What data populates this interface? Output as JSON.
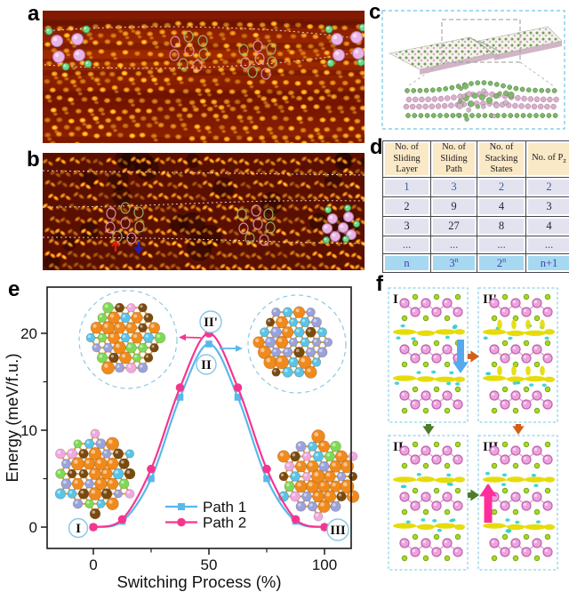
{
  "panels": {
    "a": {
      "label": "a"
    },
    "b": {
      "label": "b"
    },
    "c": {
      "label": "c"
    },
    "d": {
      "label": "d"
    },
    "e": {
      "label": "e"
    },
    "f": {
      "label": "f"
    }
  },
  "panel_d": {
    "headers": [
      {
        "text": "No. of Sliding Layer"
      },
      {
        "text": "No. of Sliding Path"
      },
      {
        "text": "No. of Stacking States"
      },
      {
        "text": "No. of P",
        "sub": "z"
      }
    ],
    "rows": [
      [
        {
          "text": "1"
        },
        {
          "text": "3"
        },
        {
          "text": "2"
        },
        {
          "text": "2"
        }
      ],
      [
        {
          "text": "2"
        },
        {
          "text": "9"
        },
        {
          "text": "4"
        },
        {
          "text": "3"
        }
      ],
      [
        {
          "text": "3"
        },
        {
          "text": "27"
        },
        {
          "text": "8"
        },
        {
          "text": "4"
        }
      ],
      [
        {
          "text": "..."
        },
        {
          "text": "..."
        },
        {
          "text": "..."
        },
        {
          "text": "..."
        }
      ],
      [
        {
          "text": "n"
        },
        {
          "text": "3",
          "sup": "n"
        },
        {
          "text": "2",
          "sup": "n"
        },
        {
          "text": "n+1"
        }
      ]
    ],
    "colors": {
      "header_bg": "#FAE9C6",
      "row_bg": "#E3E3F0",
      "last_bg": "#A6D9F1"
    }
  },
  "chart_data": {
    "type": "line",
    "x": [
      0,
      12.5,
      25,
      37.5,
      50,
      62.5,
      75,
      87.5,
      100
    ],
    "series": [
      {
        "name": "Path 1",
        "color": "#58B8EC",
        "marker": "square",
        "values": [
          0,
          0.6,
          5.0,
          13.4,
          18.9,
          13.4,
          5.0,
          0.6,
          0
        ]
      },
      {
        "name": "Path 2",
        "color": "#F5368F",
        "marker": "circle",
        "values": [
          0,
          0.8,
          6.0,
          14.4,
          20.0,
          14.4,
          6.0,
          0.8,
          0
        ]
      }
    ],
    "xlabel": "Switching Process (%)",
    "ylabel": "Energy (meV/f.u.)",
    "xticks": [
      0,
      50,
      100
    ],
    "xminor": [
      25,
      75
    ],
    "yticks": [
      0,
      10,
      20
    ],
    "yminor": [
      5,
      15
    ],
    "xlim": [
      -20,
      111.5
    ],
    "ylim": [
      -2.2,
      24.8
    ],
    "grid": false,
    "legend_position": "lower center",
    "annotations": [
      {
        "label": "I"
      },
      {
        "label": "II"
      },
      {
        "label": "II'"
      },
      {
        "label": "III"
      }
    ]
  },
  "panel_f": {
    "cells": [
      {
        "label": "I"
      },
      {
        "label": "II'"
      },
      {
        "label": "II"
      },
      {
        "label": "III"
      }
    ]
  },
  "colors": {
    "stm_bright": "#FFC62A",
    "stm_dark": "#7A1600",
    "dashed_box": "#6CC8E8",
    "path1_blue": "#58B8EC",
    "path2_pink": "#F5368F",
    "charge_yellow": "#E6DA00",
    "charge_cyan": "#2ED0D0",
    "atom_pink": "#EBA3DC",
    "atom_green": "#A8D820"
  }
}
